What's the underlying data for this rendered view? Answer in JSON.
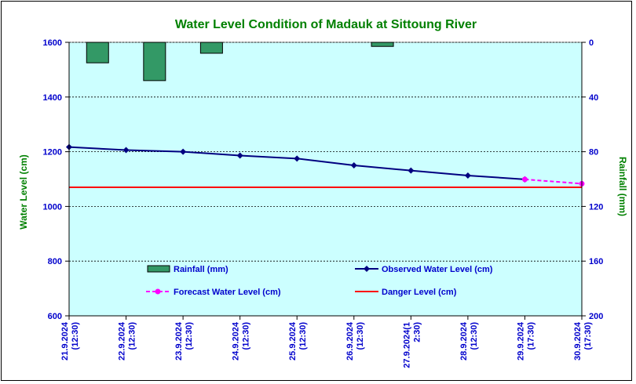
{
  "chart_data": {
    "type": "bar+line",
    "title": "Water Level Condition of Madauk at Sittoung River",
    "left_axis": {
      "label": "Water Level (cm)",
      "range": [
        600,
        1600
      ],
      "ticks": [
        600,
        800,
        1000,
        1200,
        1400,
        1600
      ]
    },
    "right_axis": {
      "label": "Rainfall (mm)",
      "range": [
        0,
        200
      ],
      "inverted": true,
      "ticks": [
        0,
        40,
        80,
        120,
        160,
        200
      ]
    },
    "x_labels": [
      [
        "21.9.2024",
        "(12:30)"
      ],
      [
        "22.9.2024",
        "(12:30)"
      ],
      [
        "23.9.2024",
        "(12:30)"
      ],
      [
        "24.9.2024",
        "(12:30)"
      ],
      [
        "25.9.2024",
        "(12:30)"
      ],
      [
        "26.9.2024",
        "(12:30)"
      ],
      [
        "27.9.2024(1",
        "2:30)"
      ],
      [
        "28.9.2024",
        "(12:30)"
      ],
      [
        "29.9.2024",
        "(17:30)"
      ],
      [
        "30.9.2024",
        "(17:30)"
      ]
    ],
    "rainfall": {
      "name": "Rainfall (mm)",
      "color": "#339966",
      "values": [
        null,
        15,
        28,
        8,
        null,
        null,
        3,
        null,
        null,
        null
      ]
    },
    "observed": {
      "name": "Observed Water Level (cm)",
      "color": "#000080",
      "values": [
        1217,
        1206,
        1200,
        1186,
        1175,
        1150,
        1131,
        1113,
        1099,
        null
      ]
    },
    "forecast": {
      "name": "Forecast Water Level (cm)",
      "color": "#ff00ff",
      "values": [
        null,
        null,
        null,
        null,
        null,
        null,
        null,
        null,
        1099,
        1083
      ]
    },
    "danger": {
      "name": "Danger Level (cm)",
      "color": "#ff0000",
      "value": 1070
    },
    "plot_background": "#ccffff",
    "grid": "horizontal dashed"
  }
}
